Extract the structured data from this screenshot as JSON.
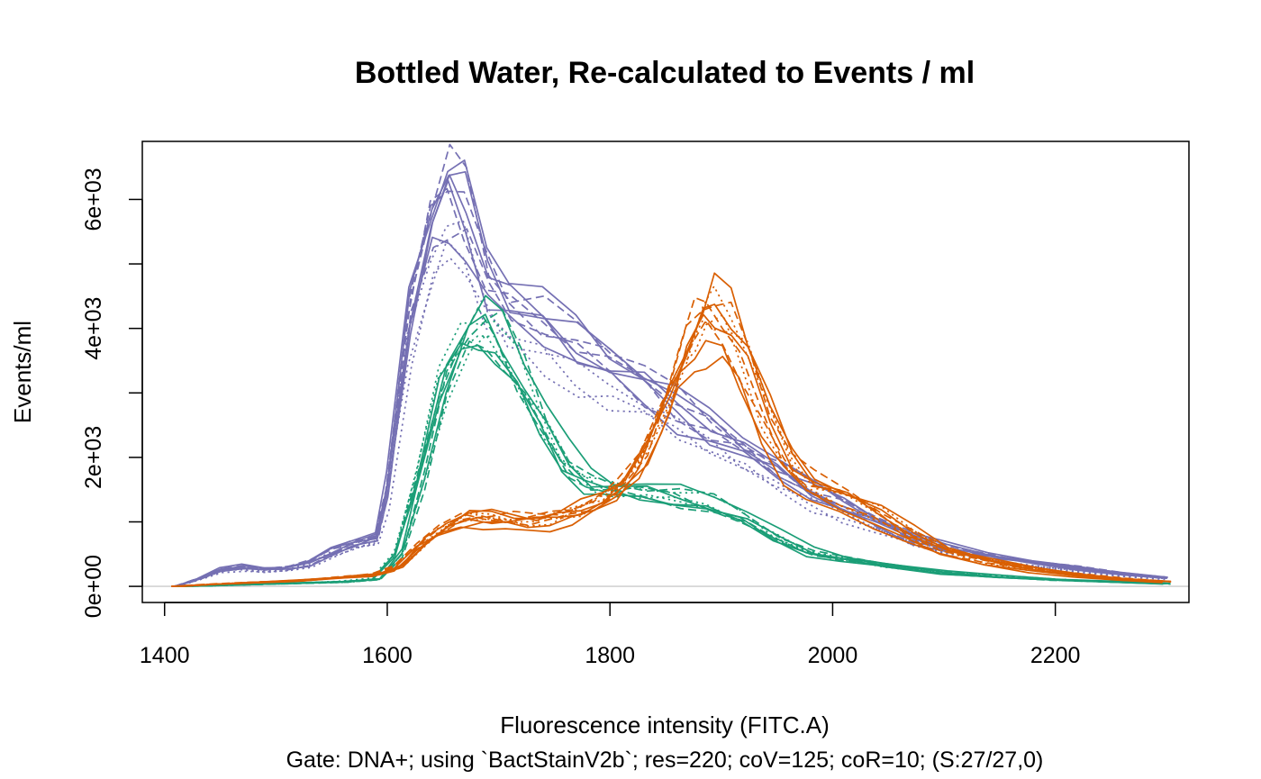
{
  "chart_data": {
    "type": "line",
    "title": "Bottled Water, Re-calculated to Events / ml",
    "xlabel": "Fluorescence intensity (FITC.A)",
    "ylabel": "Events/ml",
    "subtitle": "Gate: DNA+; using `BactStainV2b`; res=220; coV=125; coR=10; (S:27/27,0)",
    "xlim": [
      1380,
      2320
    ],
    "ylim": [
      -250,
      6900
    ],
    "x_ticks": [
      {
        "value": 1400,
        "label": "1400"
      },
      {
        "value": 1600,
        "label": "1600"
      },
      {
        "value": 1800,
        "label": "1800"
      },
      {
        "value": 2000,
        "label": "2000"
      },
      {
        "value": 2200,
        "label": "2200"
      }
    ],
    "y_ticks": [
      {
        "value": 0,
        "label": "0e+00"
      },
      {
        "value": 1000,
        "label": ""
      },
      {
        "value": 2000,
        "label": "2e+03"
      },
      {
        "value": 3000,
        "label": ""
      },
      {
        "value": 4000,
        "label": "4e+03"
      },
      {
        "value": 5000,
        "label": ""
      },
      {
        "value": 6000,
        "label": "6e+03"
      }
    ],
    "baseline": 0,
    "baseline_color": "#d3d3d3",
    "groups": [
      {
        "color": "#7570b3",
        "x": [
          1410,
          1430,
          1450,
          1470,
          1490,
          1510,
          1530,
          1550,
          1570,
          1590,
          1600,
          1620,
          1640,
          1655,
          1670,
          1690,
          1710,
          1740,
          1770,
          1800,
          1830,
          1860,
          1890,
          1920,
          1950,
          1980,
          2010,
          2040,
          2070,
          2100,
          2140,
          2180,
          2220,
          2260,
          2300
        ],
        "y": [
          0,
          120,
          270,
          310,
          280,
          300,
          380,
          560,
          700,
          800,
          1600,
          4400,
          5900,
          6400,
          6100,
          5000,
          4600,
          4300,
          3900,
          3600,
          3300,
          2900,
          2550,
          2250,
          1900,
          1550,
          1300,
          1050,
          800,
          640,
          500,
          390,
          290,
          200,
          140
        ],
        "series": [
          {
            "dash": "solid",
            "scale": 1.0,
            "seed": 1
          },
          {
            "dash": "solid",
            "scale": 0.93,
            "seed": 2
          },
          {
            "dash": "solid",
            "scale": 0.88,
            "seed": 3
          },
          {
            "dash": "solid",
            "scale": 1.04,
            "seed": 4
          },
          {
            "dash": "solid",
            "scale": 0.96,
            "seed": 5
          },
          {
            "dash": "dashed",
            "scale": 0.98,
            "seed": 6
          },
          {
            "dash": "dashed",
            "scale": 1.02,
            "seed": 7
          },
          {
            "dash": "dashed",
            "scale": 0.95,
            "seed": 8
          },
          {
            "dash": "dashed",
            "scale": 0.91,
            "seed": 9
          },
          {
            "dash": "dotted",
            "scale": 0.82,
            "seed": 10
          },
          {
            "dash": "dotted",
            "scale": 0.8,
            "seed": 11
          },
          {
            "dash": "dotted",
            "scale": 0.87,
            "seed": 12
          }
        ]
      },
      {
        "color": "#1b9e77",
        "x": [
          1410,
          1440,
          1480,
          1520,
          1560,
          1590,
          1610,
          1630,
          1650,
          1670,
          1685,
          1700,
          1720,
          1740,
          1760,
          1780,
          1800,
          1830,
          1860,
          1890,
          1920,
          1950,
          1980,
          2010,
          2050,
          2100,
          2150,
          2200,
          2250,
          2300
        ],
        "y": [
          0,
          10,
          30,
          50,
          70,
          110,
          500,
          1700,
          3100,
          3800,
          4000,
          3800,
          3200,
          2500,
          1900,
          1600,
          1500,
          1450,
          1380,
          1260,
          1050,
          750,
          520,
          420,
          320,
          210,
          150,
          100,
          70,
          40
        ],
        "series": [
          {
            "dash": "solid",
            "scale": 1.0,
            "seed": 21
          },
          {
            "dash": "solid",
            "scale": 0.97,
            "seed": 22
          },
          {
            "dash": "solid",
            "scale": 1.12,
            "seed": 23
          },
          {
            "dash": "solid",
            "scale": 0.95,
            "seed": 24
          },
          {
            "dash": "dashed",
            "scale": 1.06,
            "seed": 25
          },
          {
            "dash": "dashed",
            "scale": 1.0,
            "seed": 26
          },
          {
            "dash": "dashed",
            "scale": 0.93,
            "seed": 27
          },
          {
            "dash": "dotted",
            "scale": 1.0,
            "seed": 28
          },
          {
            "dash": "dotted",
            "scale": 0.96,
            "seed": 29
          },
          {
            "dash": "dotted",
            "scale": 1.08,
            "seed": 30
          }
        ]
      },
      {
        "color": "#d95f02",
        "x": [
          1410,
          1440,
          1480,
          1520,
          1560,
          1590,
          1610,
          1630,
          1650,
          1670,
          1690,
          1710,
          1730,
          1750,
          1770,
          1790,
          1810,
          1830,
          1850,
          1865,
          1880,
          1890,
          1905,
          1920,
          1940,
          1960,
          1980,
          2010,
          2040,
          2070,
          2100,
          2140,
          2180,
          2220,
          2260,
          2300
        ],
        "y": [
          0,
          30,
          60,
          90,
          140,
          180,
          300,
          650,
          900,
          1050,
          1050,
          1020,
          1000,
          1050,
          1150,
          1300,
          1550,
          2000,
          2800,
          3500,
          4000,
          4150,
          4000,
          3500,
          2600,
          1900,
          1550,
          1350,
          1100,
          800,
          550,
          380,
          260,
          170,
          110,
          70
        ],
        "series": [
          {
            "dash": "solid",
            "scale": 1.0,
            "seed": 41
          },
          {
            "dash": "solid",
            "scale": 0.92,
            "seed": 42
          },
          {
            "dash": "solid",
            "scale": 1.06,
            "seed": 43
          },
          {
            "dash": "solid",
            "scale": 0.86,
            "seed": 44
          },
          {
            "dash": "solid",
            "scale": 1.1,
            "seed": 45
          },
          {
            "dash": "dashed",
            "scale": 1.04,
            "seed": 46
          },
          {
            "dash": "dashed",
            "scale": 1.08,
            "seed": 47
          },
          {
            "dash": "dashed",
            "scale": 0.97,
            "seed": 48
          },
          {
            "dash": "dotted",
            "scale": 1.02,
            "seed": 49
          },
          {
            "dash": "dotted",
            "scale": 0.98,
            "seed": 50
          },
          {
            "dash": "dotted",
            "scale": 1.05,
            "seed": 51
          }
        ]
      }
    ]
  }
}
